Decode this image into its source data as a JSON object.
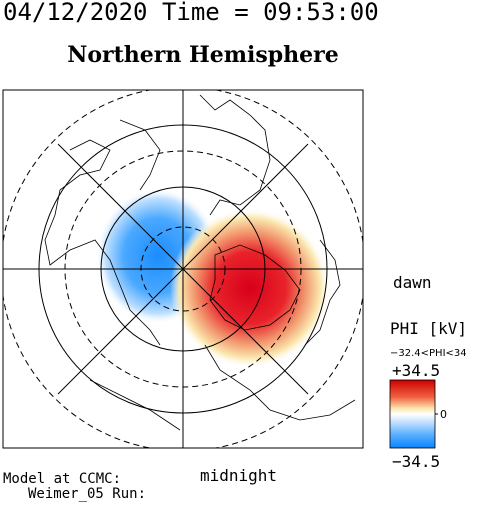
{
  "header": {
    "time": "04/12/2020 Time = 09:53:00",
    "title": "Northern Hemisphere"
  },
  "plot": {
    "dawn_label": "dawn",
    "midnight_label": "midnight"
  },
  "colorbar": {
    "title": "PHI [kV]",
    "range_text": "−32.4<PHI<34",
    "max": "+34.5",
    "mid": "0",
    "min": "−34.5"
  },
  "footer": {
    "line1": "Model at CCMC:",
    "line2": "Weimer_05 Run:"
  }
}
